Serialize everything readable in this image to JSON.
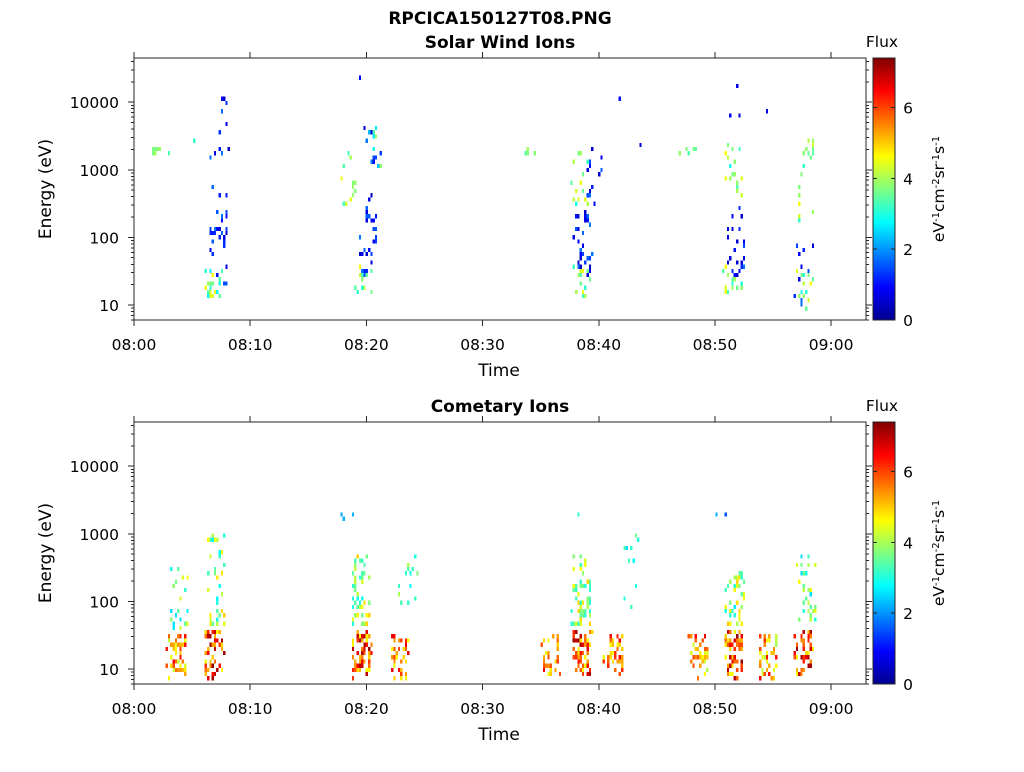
{
  "figure": {
    "title": "RPCICA150127T08.PNG"
  },
  "colorbar": {
    "label": "Flux",
    "unit_main": "eV",
    "unit_sup1": "-1",
    "unit_cm": "cm",
    "unit_sup2": "-2",
    "unit_sr": "sr",
    "unit_sup3": "-1",
    "unit_s": "s",
    "unit_sup4": "-1",
    "range": [
      0,
      7.4
    ],
    "ticks": [
      "0",
      "2",
      "4",
      "6"
    ],
    "colormap": "jet"
  },
  "chart_data": [
    {
      "type": "heatmap",
      "title": "Solar Wind Ions",
      "xlabel": "Time",
      "ylabel": "Energy (eV)",
      "x_unit": "minutes after 08:00",
      "xlim": [
        0,
        63
      ],
      "ylim": [
        6,
        45000
      ],
      "yscale": "log",
      "xticks": [
        "08:00",
        "08:10",
        "08:20",
        "08:30",
        "08:40",
        "08:50",
        "09:00"
      ],
      "yticks": [
        "10",
        "100",
        "1000",
        "10000"
      ],
      "clusters": [
        {
          "t": 2.2,
          "e_min": 1700,
          "e_max": 2200,
          "flux_min": 3.3,
          "flux_max": 4.2,
          "count": 8
        },
        {
          "t": 4.3,
          "e_min": 2800,
          "e_max": 3200,
          "flux_min": 3.0,
          "flux_max": 3.5,
          "count": 1
        },
        {
          "t": 6.8,
          "e_min": 14,
          "e_max": 35,
          "flux_min": 2.6,
          "flux_max": 4.6,
          "count": 22
        },
        {
          "t": 7.2,
          "e_min": 22,
          "e_max": 280,
          "flux_min": 0.5,
          "flux_max": 1.8,
          "count": 30
        },
        {
          "t": 7.3,
          "e_min": 450,
          "e_max": 13000,
          "flux_min": 0.5,
          "flux_max": 1.8,
          "count": 14
        },
        {
          "t": 18.2,
          "e_min": 300,
          "e_max": 2200,
          "flux_min": 3.0,
          "flux_max": 4.6,
          "count": 14
        },
        {
          "t": 19.8,
          "e_min": 14,
          "e_max": 40,
          "flux_min": 3.0,
          "flux_max": 4.6,
          "count": 14
        },
        {
          "t": 20.1,
          "e_min": 30,
          "e_max": 450,
          "flux_min": 0.5,
          "flux_max": 1.8,
          "count": 30
        },
        {
          "t": 20.5,
          "e_min": 1200,
          "e_max": 5000,
          "flux_min": 0.5,
          "flux_max": 4.0,
          "count": 16
        },
        {
          "t": 20.0,
          "e_min": 25000,
          "e_max": 26000,
          "flux_min": 0.5,
          "flux_max": 1.0,
          "count": 1
        },
        {
          "t": 34.2,
          "e_min": 1700,
          "e_max": 2200,
          "flux_min": 3.3,
          "flux_max": 4.0,
          "count": 4
        },
        {
          "t": 38.4,
          "e_min": 14,
          "e_max": 40,
          "flux_min": 3.0,
          "flux_max": 4.6,
          "count": 18
        },
        {
          "t": 38.6,
          "e_min": 30,
          "e_max": 250,
          "flux_min": 0.5,
          "flux_max": 1.8,
          "count": 28
        },
        {
          "t": 38.2,
          "e_min": 300,
          "e_max": 2000,
          "flux_min": 3.0,
          "flux_max": 4.6,
          "count": 14
        },
        {
          "t": 39.4,
          "e_min": 180,
          "e_max": 2500,
          "flux_min": 0.5,
          "flux_max": 1.8,
          "count": 14
        },
        {
          "t": 41.5,
          "e_min": 12000,
          "e_max": 13000,
          "flux_min": 0.5,
          "flux_max": 1.0,
          "count": 1
        },
        {
          "t": 43.0,
          "e_min": 2500,
          "e_max": 2700,
          "flux_min": 0.5,
          "flux_max": 1.0,
          "count": 1
        },
        {
          "t": 47.5,
          "e_min": 1700,
          "e_max": 2200,
          "flux_min": 3.3,
          "flux_max": 4.0,
          "count": 5
        },
        {
          "t": 51.5,
          "e_min": 14,
          "e_max": 40,
          "flux_min": 3.0,
          "flux_max": 4.6,
          "count": 16
        },
        {
          "t": 51.7,
          "e_min": 30,
          "e_max": 300,
          "flux_min": 0.5,
          "flux_max": 1.8,
          "count": 24
        },
        {
          "t": 51.4,
          "e_min": 400,
          "e_max": 2500,
          "flux_min": 2.8,
          "flux_max": 4.6,
          "count": 16
        },
        {
          "t": 51.6,
          "e_min": 6500,
          "e_max": 28000,
          "flux_min": 0.5,
          "flux_max": 1.0,
          "count": 3
        },
        {
          "t": 54.8,
          "e_min": 7000,
          "e_max": 7600,
          "flux_min": 0.5,
          "flux_max": 1.0,
          "count": 1
        },
        {
          "t": 57.8,
          "e_min": 10,
          "e_max": 40,
          "flux_min": 3.0,
          "flux_max": 4.6,
          "count": 16
        },
        {
          "t": 57.5,
          "e_min": 8,
          "e_max": 100,
          "flux_min": 0.5,
          "flux_max": 1.8,
          "count": 10
        },
        {
          "t": 57.6,
          "e_min": 150,
          "e_max": 3200,
          "flux_min": 3.0,
          "flux_max": 4.6,
          "count": 18
        }
      ]
    },
    {
      "type": "heatmap",
      "title": "Cometary Ions",
      "xlabel": "Time",
      "ylabel": "Energy (eV)",
      "x_unit": "minutes after 08:00",
      "xlim": [
        0,
        63
      ],
      "ylim": [
        6,
        45000
      ],
      "yscale": "log",
      "xticks": [
        "08:00",
        "08:10",
        "08:20",
        "08:30",
        "08:40",
        "08:50",
        "09:00"
      ],
      "yticks": [
        "10",
        "100",
        "1000",
        "10000"
      ],
      "clusters": [
        {
          "t": 3.5,
          "e_min": 8,
          "e_max": 35,
          "flux_min": 4.0,
          "flux_max": 6.6,
          "count": 45
        },
        {
          "t": 3.8,
          "e_min": 40,
          "e_max": 400,
          "flux_min": 2.5,
          "flux_max": 4.6,
          "count": 22
        },
        {
          "t": 6.8,
          "e_min": 8,
          "e_max": 40,
          "flux_min": 4.5,
          "flux_max": 7.3,
          "count": 55
        },
        {
          "t": 7.0,
          "e_min": 45,
          "e_max": 1000,
          "flux_min": 2.5,
          "flux_max": 5.0,
          "count": 40
        },
        {
          "t": 19.5,
          "e_min": 8,
          "e_max": 40,
          "flux_min": 4.5,
          "flux_max": 7.3,
          "count": 60
        },
        {
          "t": 19.5,
          "e_min": 45,
          "e_max": 500,
          "flux_min": 2.8,
          "flux_max": 5.0,
          "count": 50
        },
        {
          "t": 18.3,
          "e_min": 1900,
          "e_max": 2200,
          "flux_min": 2.0,
          "flux_max": 3.0,
          "count": 4
        },
        {
          "t": 22.8,
          "e_min": 8,
          "e_max": 35,
          "flux_min": 4.5,
          "flux_max": 6.8,
          "count": 40
        },
        {
          "t": 23.5,
          "e_min": 50,
          "e_max": 600,
          "flux_min": 2.8,
          "flux_max": 4.6,
          "count": 14
        },
        {
          "t": 35.8,
          "e_min": 8,
          "e_max": 35,
          "flux_min": 4.5,
          "flux_max": 6.6,
          "count": 35
        },
        {
          "t": 38.5,
          "e_min": 8,
          "e_max": 40,
          "flux_min": 4.5,
          "flux_max": 7.3,
          "count": 60
        },
        {
          "t": 38.4,
          "e_min": 45,
          "e_max": 500,
          "flux_min": 2.8,
          "flux_max": 5.0,
          "count": 55
        },
        {
          "t": 37.5,
          "e_min": 1900,
          "e_max": 2100,
          "flux_min": 3.0,
          "flux_max": 3.5,
          "count": 1
        },
        {
          "t": 41.2,
          "e_min": 8,
          "e_max": 35,
          "flux_min": 4.5,
          "flux_max": 6.6,
          "count": 35
        },
        {
          "t": 42.8,
          "e_min": 60,
          "e_max": 1300,
          "flux_min": 2.5,
          "flux_max": 3.8,
          "count": 10
        },
        {
          "t": 48.5,
          "e_min": 8,
          "e_max": 35,
          "flux_min": 4.0,
          "flux_max": 6.6,
          "count": 40
        },
        {
          "t": 51.5,
          "e_min": 8,
          "e_max": 40,
          "flux_min": 4.5,
          "flux_max": 7.3,
          "count": 55
        },
        {
          "t": 51.6,
          "e_min": 45,
          "e_max": 300,
          "flux_min": 2.5,
          "flux_max": 5.0,
          "count": 45
        },
        {
          "t": 50.3,
          "e_min": 1900,
          "e_max": 2200,
          "flux_min": 0.8,
          "flux_max": 3.0,
          "count": 2
        },
        {
          "t": 54.5,
          "e_min": 8,
          "e_max": 35,
          "flux_min": 4.0,
          "flux_max": 6.6,
          "count": 40
        },
        {
          "t": 57.5,
          "e_min": 8,
          "e_max": 40,
          "flux_min": 4.5,
          "flux_max": 7.3,
          "count": 50
        },
        {
          "t": 57.8,
          "e_min": 45,
          "e_max": 500,
          "flux_min": 2.5,
          "flux_max": 4.6,
          "count": 35
        }
      ]
    }
  ]
}
